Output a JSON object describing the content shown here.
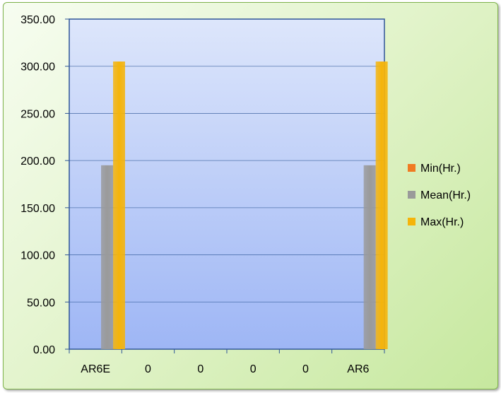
{
  "chart_data": {
    "type": "bar",
    "categories": [
      "AR6E",
      "0",
      "0",
      "0",
      "0",
      "AR6"
    ],
    "series": [
      {
        "name": "Min(Hr.)",
        "color": "#f07b22",
        "values": [
          0,
          0,
          0,
          0,
          0,
          0
        ]
      },
      {
        "name": "Mean(Hr.)",
        "color": "#9a9a9a",
        "values": [
          195,
          0,
          0,
          0,
          0,
          195
        ]
      },
      {
        "name": "Max(Hr.)",
        "color": "#f5b40a",
        "values": [
          305,
          0,
          0,
          0,
          0,
          305
        ]
      }
    ],
    "ylim": [
      0,
      350
    ],
    "yticks": [
      "0.00",
      "50.00",
      "100.00",
      "150.00",
      "200.00",
      "250.00",
      "300.00",
      "350.00"
    ],
    "grid": true,
    "legend": "right",
    "plot_background": [
      "#dde6fb",
      "#9eb6f5"
    ],
    "chart_background": "#d6efb8"
  }
}
